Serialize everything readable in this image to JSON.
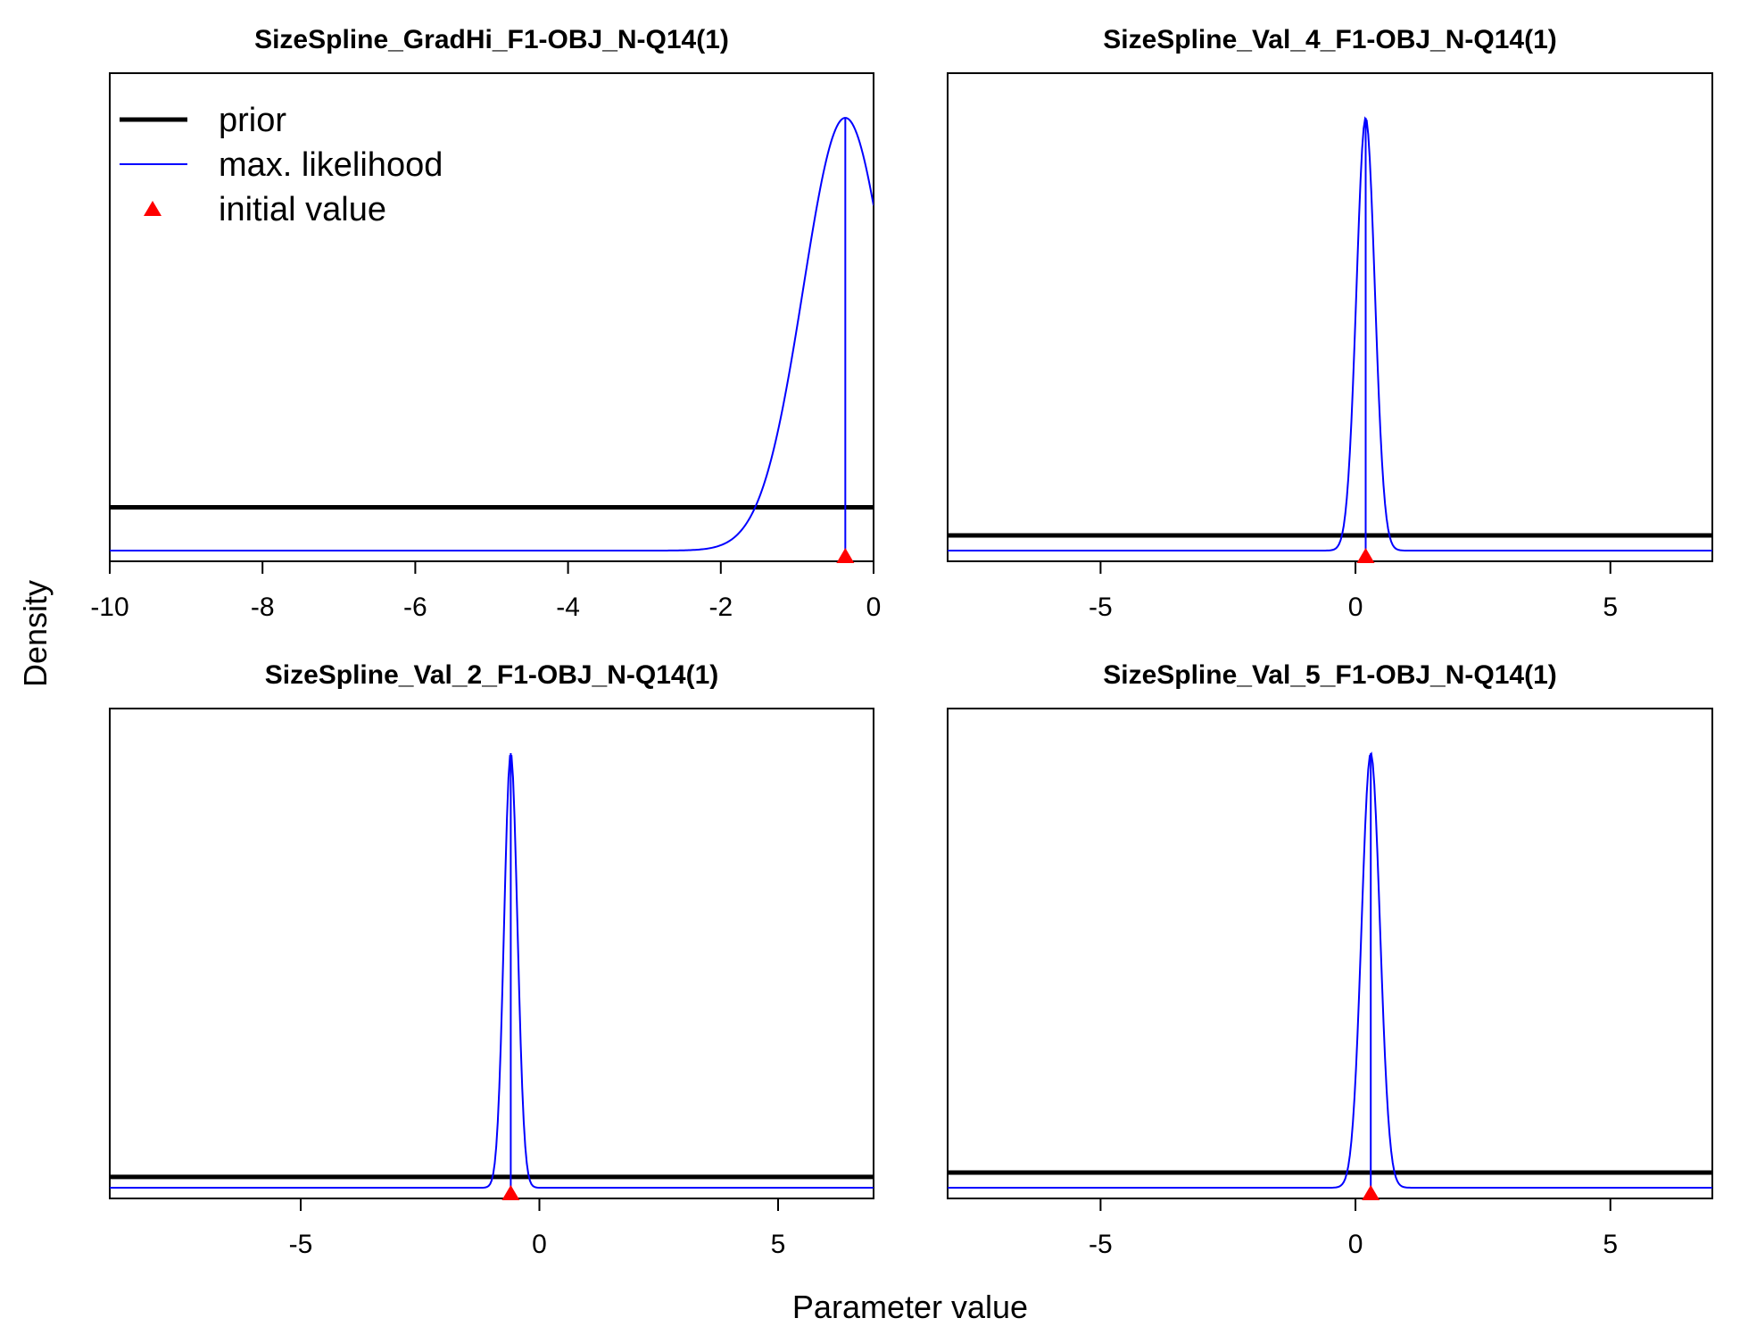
{
  "figure": {
    "ylabel": "Density",
    "xlabel": "Parameter value"
  },
  "legend": {
    "items": [
      {
        "label": "prior",
        "color": "#000000",
        "kind": "thick-line"
      },
      {
        "label": "max. likelihood",
        "color": "#0000ff",
        "kind": "thin-line"
      },
      {
        "label": "initial value",
        "color": "#ff0000",
        "kind": "triangle"
      }
    ]
  },
  "colors": {
    "prior": "#000000",
    "likelihood": "#0000ff",
    "initial": "#ff0000"
  },
  "chart_data": [
    {
      "type": "line",
      "title": "SizeSpline_GradHi_F1-OBJ_N-Q14(1)",
      "xlim": [
        -10,
        0
      ],
      "ticks": [
        -10,
        -8,
        -6,
        -4,
        -2,
        0
      ],
      "tick_labels": [
        "-10",
        "-8",
        "-6",
        "-4",
        "-2",
        "0"
      ],
      "prior_level": 0.1,
      "mle": -0.37,
      "sd": 0.55,
      "initial_value": -0.37,
      "legend": true
    },
    {
      "type": "line",
      "title": "SizeSpline_Val_4_F1-OBJ_N-Q14(1)",
      "xlim": [
        -8,
        7
      ],
      "ticks": [
        -5,
        0,
        5
      ],
      "tick_labels": [
        "-5",
        "0",
        "5"
      ],
      "prior_level": 0.035,
      "mle": 0.2,
      "sd": 0.18,
      "initial_value": 0.2,
      "legend": false
    },
    {
      "type": "line",
      "title": "SizeSpline_Val_2_F1-OBJ_N-Q14(1)",
      "xlim": [
        -9,
        7
      ],
      "ticks": [
        -5,
        0,
        5
      ],
      "tick_labels": [
        "-5",
        "0",
        "5"
      ],
      "prior_level": 0.025,
      "mle": -0.6,
      "sd": 0.14,
      "initial_value": -0.6,
      "legend": false
    },
    {
      "type": "line",
      "title": "SizeSpline_Val_5_F1-OBJ_N-Q14(1)",
      "xlim": [
        -8,
        7
      ],
      "ticks": [
        -5,
        0,
        5
      ],
      "tick_labels": [
        "-5",
        "0",
        "5"
      ],
      "prior_level": 0.035,
      "mle": 0.3,
      "sd": 0.18,
      "initial_value": 0.3,
      "legend": false
    }
  ]
}
